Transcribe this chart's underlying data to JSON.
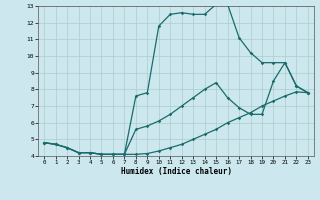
{
  "xlabel": "Humidex (Indice chaleur)",
  "bg_color": "#cce8ee",
  "grid_color": "#aacccc",
  "line_color": "#1a6b6b",
  "xlim": [
    -0.5,
    23.5
  ],
  "ylim": [
    4,
    13
  ],
  "xticks": [
    0,
    1,
    2,
    3,
    4,
    5,
    6,
    7,
    8,
    9,
    10,
    11,
    12,
    13,
    14,
    15,
    16,
    17,
    18,
    19,
    20,
    21,
    22,
    23
  ],
  "yticks": [
    4,
    5,
    6,
    7,
    8,
    9,
    10,
    11,
    12,
    13
  ],
  "line1_x": [
    0,
    1,
    2,
    3,
    4,
    5,
    6,
    7,
    8,
    9,
    10,
    11,
    12,
    13,
    14,
    15,
    16,
    17,
    18,
    19,
    20,
    21,
    22,
    23
  ],
  "line1_y": [
    4.8,
    4.7,
    4.5,
    4.2,
    4.2,
    4.1,
    4.1,
    4.1,
    4.1,
    4.15,
    4.3,
    4.5,
    4.7,
    5.0,
    5.3,
    5.6,
    6.0,
    6.3,
    6.6,
    7.0,
    7.3,
    7.6,
    7.85,
    7.8
  ],
  "line2_x": [
    0,
    1,
    2,
    3,
    4,
    5,
    6,
    7,
    8,
    9,
    10,
    11,
    12,
    13,
    14,
    15,
    16,
    17,
    18,
    19,
    20,
    21,
    22,
    23
  ],
  "line2_y": [
    4.8,
    4.7,
    4.5,
    4.2,
    4.2,
    4.1,
    4.1,
    4.1,
    5.6,
    5.8,
    6.1,
    6.5,
    7.0,
    7.5,
    8.0,
    8.4,
    7.5,
    6.9,
    6.5,
    6.5,
    8.5,
    9.6,
    8.2,
    7.8
  ],
  "line3_x": [
    0,
    1,
    2,
    3,
    4,
    5,
    6,
    7,
    8,
    9,
    10,
    11,
    12,
    13,
    14,
    15,
    16,
    17,
    18,
    19,
    20,
    21,
    22,
    23
  ],
  "line3_y": [
    4.8,
    4.7,
    4.5,
    4.2,
    4.2,
    4.1,
    4.1,
    4.1,
    7.6,
    7.8,
    11.8,
    12.5,
    12.6,
    12.5,
    12.5,
    13.1,
    13.1,
    11.1,
    10.2,
    9.6,
    9.6,
    9.6,
    8.2,
    7.8
  ]
}
